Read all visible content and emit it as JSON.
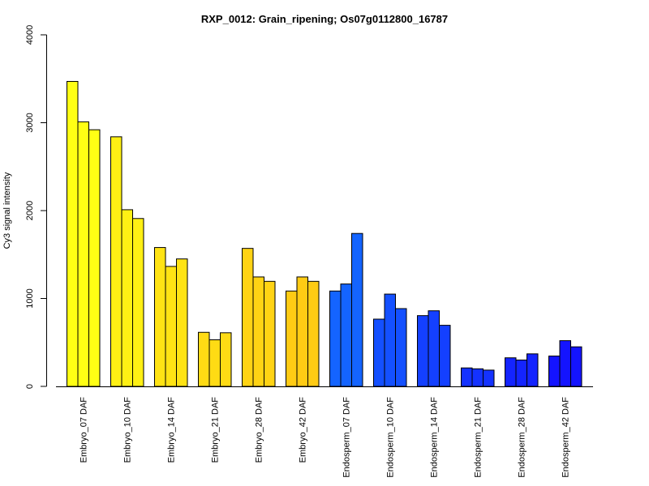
{
  "chart_data": {
    "type": "bar",
    "title": "RXP_0012: Grain_ripening; Os07g0112800_16787",
    "ylabel": "Cy3 signal intensity",
    "xlabel": "",
    "ylim": [
      0,
      4000
    ],
    "yticks": [
      "0",
      "1000",
      "2000",
      "3000",
      "4000"
    ],
    "grid": false,
    "legend": "none",
    "categories": [
      "Embryo_07 DAF",
      "Embryo_10 DAF",
      "Embryo_14 DAF",
      "Embryo_21 DAF",
      "Embryo_28 DAF",
      "Embryo_42 DAF",
      "Endosperm_07 DAF",
      "Endosperm_10 DAF",
      "Endosperm_14 DAF",
      "Endosperm_21 DAF",
      "Endosperm_28 DAF",
      "Endosperm_42 DAF"
    ],
    "groups": [
      {
        "color": "#FFFF14",
        "values": [
          3470,
          3010,
          2920
        ]
      },
      {
        "color": "#FFF014",
        "values": [
          2840,
          2010,
          1910
        ]
      },
      {
        "color": "#FFE314",
        "values": [
          1580,
          1365,
          1450
        ]
      },
      {
        "color": "#FFDB14",
        "values": [
          615,
          530,
          610
        ]
      },
      {
        "color": "#FFD314",
        "values": [
          1570,
          1245,
          1195
        ]
      },
      {
        "color": "#FFCB14",
        "values": [
          1085,
          1245,
          1195
        ]
      },
      {
        "color": "#1464FF",
        "values": [
          1085,
          1165,
          1740
        ]
      },
      {
        "color": "#1450FF",
        "values": [
          765,
          1050,
          885
        ]
      },
      {
        "color": "#1440FF",
        "values": [
          805,
          860,
          695
        ]
      },
      {
        "color": "#1432FF",
        "values": [
          210,
          200,
          185
        ]
      },
      {
        "color": "#1424FF",
        "values": [
          325,
          300,
          370
        ]
      },
      {
        "color": "#1414FF",
        "values": [
          345,
          520,
          450
        ]
      }
    ]
  }
}
